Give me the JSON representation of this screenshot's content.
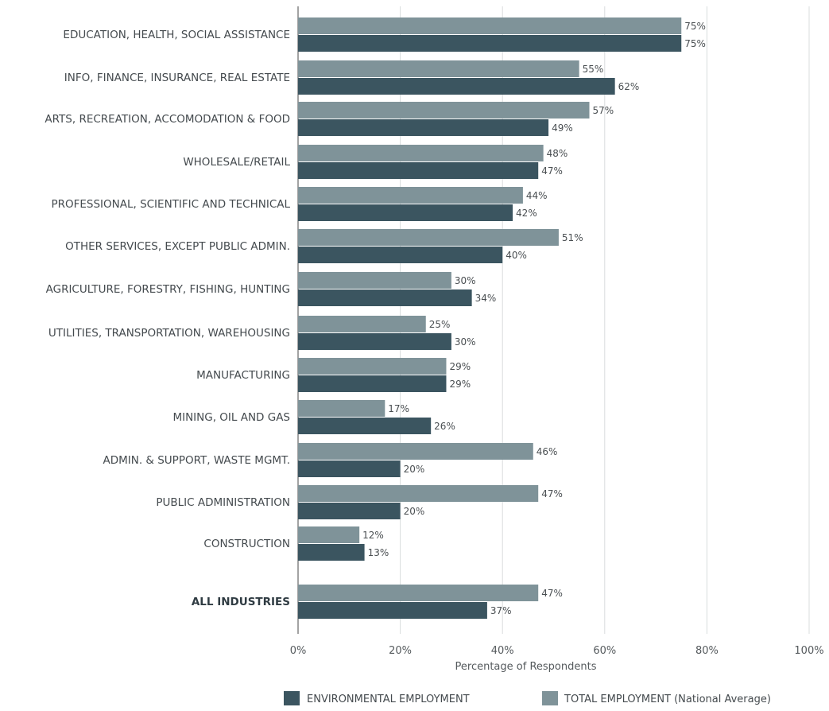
{
  "colors": {
    "environmental": "#3b5560",
    "total": "#7f9399",
    "grid": "#d9dcdd",
    "axis": "#666666"
  },
  "chart_data": {
    "type": "bar",
    "orientation": "horizontal",
    "categories": [
      "EDUCATION, HEALTH, SOCIAL ASSISTANCE",
      "INFO, FINANCE, INSURANCE, REAL ESTATE",
      "ARTS, RECREATION, ACCOMODATION & FOOD",
      "WHOLESALE/RETAIL",
      "PROFESSIONAL, SCIENTIFIC AND TECHNICAL",
      "OTHER SERVICES, EXCEPT PUBLIC ADMIN.",
      "AGRICULTURE, FORESTRY, FISHING, HUNTING",
      "UTILITIES, TRANSPORTATION, WAREHOUSING",
      "MANUFACTURING",
      "MINING, OIL AND GAS",
      "ADMIN. & SUPPORT, WASTE MGMT.",
      "PUBLIC ADMINISTRATION",
      "CONSTRUCTION",
      "ALL INDUSTRIES"
    ],
    "bold_categories": [
      "ALL INDUSTRIES"
    ],
    "series": [
      {
        "name": "TOTAL EMPLOYMENT (National Average)",
        "values": [
          75,
          55,
          57,
          48,
          44,
          51,
          30,
          25,
          29,
          17,
          46,
          47,
          12,
          47
        ],
        "labels": [
          "75%",
          "55%",
          "57%",
          "48%",
          "44%",
          "51%",
          "30%",
          "25%",
          "29%",
          "17%",
          "46%",
          "47%",
          "12%",
          "47%"
        ]
      },
      {
        "name": "ENVIRONMENTAL EMPLOYMENT",
        "values": [
          75,
          62,
          49,
          47,
          42,
          40,
          34,
          30,
          29,
          26,
          20,
          20,
          13,
          37
        ],
        "labels": [
          "75%",
          "62%",
          "49%",
          "47%",
          "42%",
          "40%",
          "34%",
          "30%",
          "29%",
          "26%",
          "20%",
          "20%",
          "13%",
          "37%"
        ]
      }
    ],
    "xlim": [
      0,
      100
    ],
    "xticks": [
      0,
      20,
      40,
      60,
      80,
      100
    ],
    "xtick_labels": [
      "0%",
      "20%",
      "40%",
      "60%",
      "80%",
      "100%"
    ],
    "xlabel": "Percentage of Respondents",
    "ylabel": "",
    "title": "",
    "grid": true,
    "legend": {
      "position": "bottom",
      "items": [
        {
          "name": "ENVIRONMENTAL EMPLOYMENT",
          "series": 1
        },
        {
          "name": "TOTAL EMPLOYMENT (National Average)",
          "series": 0
        }
      ]
    }
  }
}
